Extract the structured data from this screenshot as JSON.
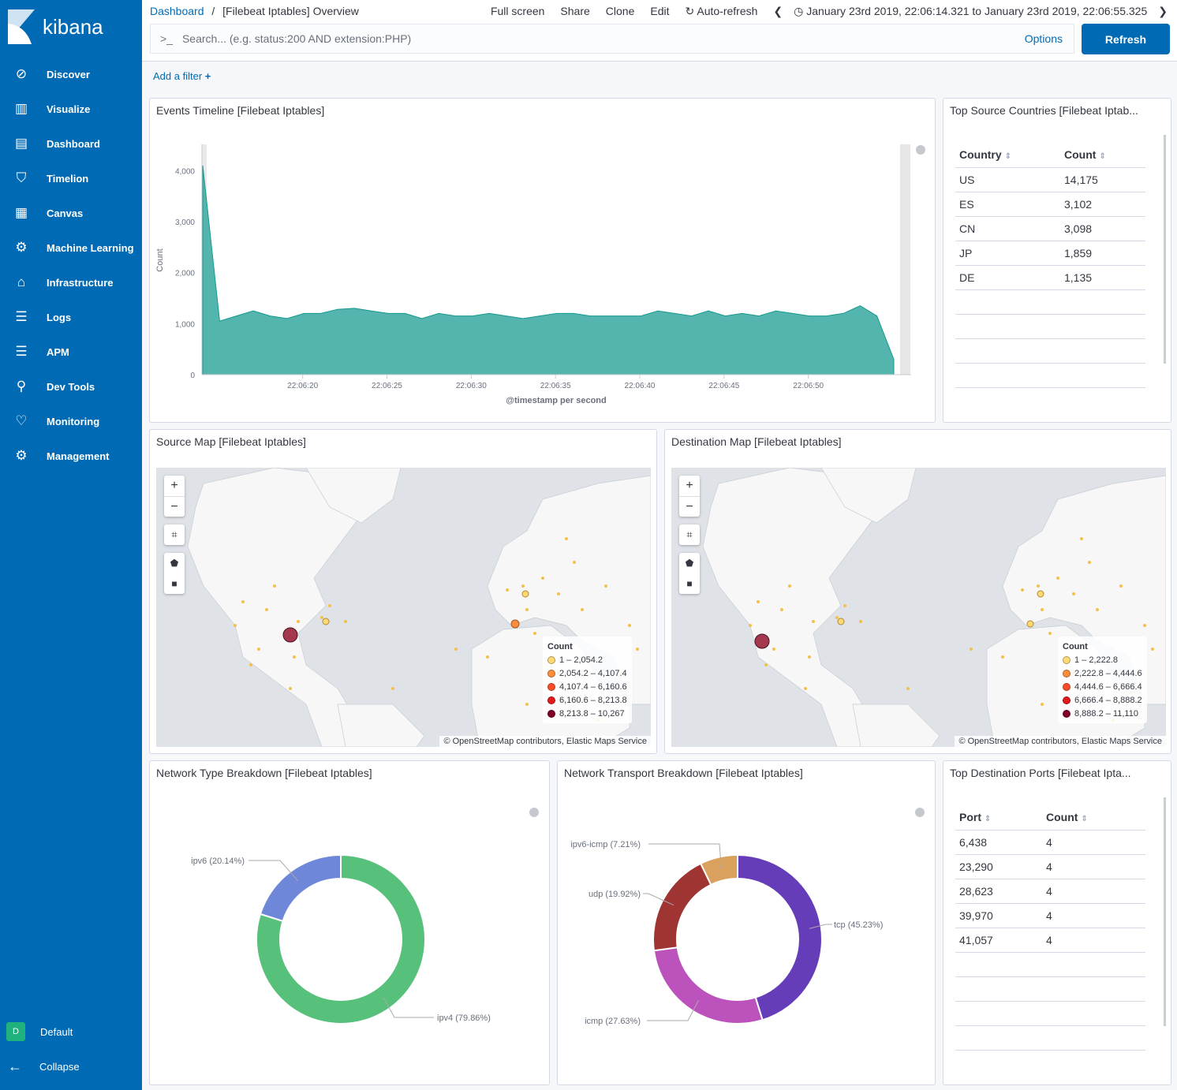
{
  "sidebar": {
    "brand": "kibana",
    "items": [
      {
        "label": "Discover",
        "icon": "compass-icon"
      },
      {
        "label": "Visualize",
        "icon": "visualize-icon"
      },
      {
        "label": "Dashboard",
        "icon": "dashboard-icon"
      },
      {
        "label": "Timelion",
        "icon": "timelion-icon"
      },
      {
        "label": "Canvas",
        "icon": "canvas-icon"
      },
      {
        "label": "Machine Learning",
        "icon": "ml-icon"
      },
      {
        "label": "Infrastructure",
        "icon": "infrastructure-icon"
      },
      {
        "label": "Logs",
        "icon": "logs-icon"
      },
      {
        "label": "APM",
        "icon": "apm-icon"
      },
      {
        "label": "Dev Tools",
        "icon": "wrench-icon"
      },
      {
        "label": "Monitoring",
        "icon": "heartbeat-icon"
      },
      {
        "label": "Management",
        "icon": "gear-icon"
      }
    ],
    "space": {
      "badge": "D",
      "label": "Default"
    },
    "collapse": "Collapse"
  },
  "header": {
    "breadcrumb_root": "Dashboard",
    "breadcrumb_sep": "/",
    "title": "[Filebeat Iptables] Overview",
    "menu": [
      "Full screen",
      "Share",
      "Clone",
      "Edit"
    ],
    "auto_refresh": "Auto-refresh",
    "time_range": "January 23rd 2019, 22:06:14.321 to January 23rd 2019, 22:06:55.325"
  },
  "search": {
    "prompt": ">_",
    "placeholder": "Search... (e.g. status:200 AND extension:PHP)",
    "options": "Options",
    "refresh": "Refresh"
  },
  "filter": {
    "add": "Add a filter",
    "plus": "+"
  },
  "colors": {
    "sidebar": "#006bb4",
    "area": "#54b4ae",
    "area_line": "#15998e"
  },
  "timeline": {
    "title": "Events Timeline [Filebeat Iptables]"
  },
  "chart_data": [
    {
      "type": "area",
      "title": "",
      "xlabel": "@timestamp per second",
      "ylabel": "Count",
      "ylim": [
        0,
        4500
      ],
      "yticks": [
        "0",
        "1,000",
        "2,000",
        "3,000",
        "4,000"
      ],
      "xticks": [
        "22:06:20",
        "22:06:25",
        "22:06:30",
        "22:06:35",
        "22:06:40",
        "22:06:45",
        "22:06:50"
      ],
      "x_start": "22:06:14",
      "x_end": "22:06:55",
      "values": [
        4100,
        1050,
        1150,
        1250,
        1150,
        1100,
        1200,
        1200,
        1280,
        1300,
        1250,
        1200,
        1200,
        1100,
        1200,
        1150,
        1150,
        1200,
        1150,
        1100,
        1150,
        1200,
        1200,
        1150,
        1150,
        1150,
        1150,
        1250,
        1200,
        1150,
        1250,
        1150,
        1200,
        1150,
        1250,
        1200,
        1150,
        1150,
        1200,
        1350,
        1150,
        300
      ]
    },
    {
      "type": "pie",
      "donut": true,
      "slices": [
        {
          "label": "ipv4 (79.86%)",
          "value": 79.86,
          "color": "#57c17b"
        },
        {
          "label": "ipv6 (20.14%)",
          "value": 20.14,
          "color": "#6f87d8"
        }
      ]
    },
    {
      "type": "pie",
      "donut": true,
      "slices": [
        {
          "label": "tcp (45.23%)",
          "value": 45.23,
          "color": "#663db8"
        },
        {
          "label": "icmp (27.63%)",
          "value": 27.63,
          "color": "#bc52bc"
        },
        {
          "label": "udp (19.92%)",
          "value": 19.92,
          "color": "#9e3533"
        },
        {
          "label": "ipv6-icmp (7.21%)",
          "value": 7.21,
          "color": "#daa05d"
        }
      ]
    }
  ],
  "countries": {
    "title": "Top Source Countries [Filebeat Iptab...",
    "headers": [
      "Country",
      "Count"
    ],
    "rows": [
      [
        "US",
        "14,175"
      ],
      [
        "ES",
        "3,102"
      ],
      [
        "CN",
        "3,098"
      ],
      [
        "JP",
        "1,859"
      ],
      [
        "DE",
        "1,135"
      ]
    ]
  },
  "ports": {
    "title": "Top Destination Ports [Filebeat Ipta...",
    "headers": [
      "Port",
      "Count"
    ],
    "rows": [
      [
        "6,438",
        "4"
      ],
      [
        "23,290",
        "4"
      ],
      [
        "28,623",
        "4"
      ],
      [
        "39,970",
        "4"
      ],
      [
        "41,057",
        "4"
      ]
    ]
  },
  "source_map": {
    "title": "Source Map [Filebeat Iptables]",
    "legend_title": "Count",
    "legend": [
      {
        "label": "1 – 2,054.2",
        "color": "#fed976"
      },
      {
        "label": "2,054.2 – 4,107.4",
        "color": "#fd8d3c"
      },
      {
        "label": "4,107.4 – 6,160.6",
        "color": "#fc4e2a"
      },
      {
        "label": "6,160.6 – 8,213.8",
        "color": "#e31a1c"
      },
      {
        "label": "8,213.8 – 10,267",
        "color": "#800026"
      }
    ],
    "attribution": "© OpenStreetMap contributors, Elastic Maps Service"
  },
  "dest_map": {
    "title": "Destination Map [Filebeat Iptables]",
    "legend_title": "Count",
    "legend": [
      {
        "label": "1 – 2,222.8",
        "color": "#fed976"
      },
      {
        "label": "2,222.8 – 4,444.6",
        "color": "#fd8d3c"
      },
      {
        "label": "4,444.6 – 6,666.4",
        "color": "#fc4e2a"
      },
      {
        "label": "6,666.4 – 8,888.2",
        "color": "#e31a1c"
      },
      {
        "label": "8,888.2 – 11,110",
        "color": "#800026"
      }
    ],
    "attribution": "© OpenStreetMap contributors, Elastic Maps Service"
  },
  "map_controls": {
    "zoom_in": "+",
    "zoom_out": "−"
  },
  "net_type": {
    "title": "Network Type Breakdown [Filebeat Iptables]"
  },
  "net_transport": {
    "title": "Network Transport Breakdown [Filebeat Iptables]"
  }
}
